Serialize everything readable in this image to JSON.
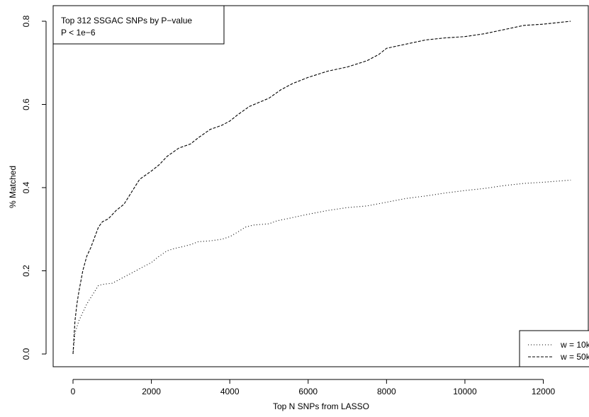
{
  "chart_data": {
    "type": "line",
    "title": "",
    "xlabel": "Top N SNPs from LASSO",
    "ylabel": "% Matched",
    "xlim": [
      0,
      12750
    ],
    "ylim": [
      0,
      0.8
    ],
    "x_ticks": [
      0,
      2000,
      4000,
      6000,
      8000,
      10000,
      12000
    ],
    "x_tick_labels": [
      "0",
      "2000",
      "4000",
      "6000",
      "8000",
      "10000",
      "12000"
    ],
    "y_ticks": [
      0.0,
      0.2,
      0.4,
      0.6,
      0.8
    ],
    "y_tick_labels": [
      "0.0",
      "0.2",
      "0.4",
      "0.6",
      "0.8"
    ],
    "grid": false,
    "legend_position": "bottom-right",
    "annotation": {
      "lines": [
        "Top 312 SSGAC SNPs by P−value",
        "P < 1e−6"
      ],
      "position": "top-left"
    },
    "series": [
      {
        "name": "w = 10k",
        "line_style": "dotted",
        "color": "#000000",
        "points": [
          [
            0,
            0.0
          ],
          [
            50,
            0.05
          ],
          [
            100,
            0.065
          ],
          [
            150,
            0.08
          ],
          [
            250,
            0.1
          ],
          [
            350,
            0.12
          ],
          [
            450,
            0.135
          ],
          [
            550,
            0.15
          ],
          [
            650,
            0.165
          ],
          [
            800,
            0.168
          ],
          [
            1000,
            0.17
          ],
          [
            1200,
            0.18
          ],
          [
            1400,
            0.19
          ],
          [
            1600,
            0.2
          ],
          [
            1800,
            0.21
          ],
          [
            2000,
            0.22
          ],
          [
            2200,
            0.235
          ],
          [
            2400,
            0.248
          ],
          [
            2600,
            0.254
          ],
          [
            2800,
            0.258
          ],
          [
            3000,
            0.263
          ],
          [
            3200,
            0.27
          ],
          [
            3500,
            0.272
          ],
          [
            3800,
            0.276
          ],
          [
            4000,
            0.282
          ],
          [
            4200,
            0.293
          ],
          [
            4400,
            0.305
          ],
          [
            4600,
            0.31
          ],
          [
            5000,
            0.313
          ],
          [
            5200,
            0.32
          ],
          [
            5500,
            0.326
          ],
          [
            6000,
            0.336
          ],
          [
            6500,
            0.345
          ],
          [
            7000,
            0.352
          ],
          [
            7500,
            0.356
          ],
          [
            8000,
            0.365
          ],
          [
            8500,
            0.374
          ],
          [
            9000,
            0.38
          ],
          [
            9500,
            0.387
          ],
          [
            10000,
            0.393
          ],
          [
            10500,
            0.398
          ],
          [
            11000,
            0.405
          ],
          [
            11500,
            0.41
          ],
          [
            12000,
            0.413
          ],
          [
            12700,
            0.418
          ]
        ]
      },
      {
        "name": "w = 50k",
        "line_style": "dashed",
        "color": "#000000",
        "points": [
          [
            0,
            0.0
          ],
          [
            50,
            0.08
          ],
          [
            100,
            0.12
          ],
          [
            150,
            0.15
          ],
          [
            250,
            0.2
          ],
          [
            350,
            0.235
          ],
          [
            450,
            0.255
          ],
          [
            550,
            0.28
          ],
          [
            650,
            0.305
          ],
          [
            750,
            0.318
          ],
          [
            900,
            0.325
          ],
          [
            1000,
            0.335
          ],
          [
            1100,
            0.345
          ],
          [
            1300,
            0.36
          ],
          [
            1500,
            0.39
          ],
          [
            1700,
            0.42
          ],
          [
            2000,
            0.44
          ],
          [
            2200,
            0.455
          ],
          [
            2400,
            0.475
          ],
          [
            2700,
            0.495
          ],
          [
            3000,
            0.505
          ],
          [
            3200,
            0.52
          ],
          [
            3500,
            0.54
          ],
          [
            3800,
            0.55
          ],
          [
            4000,
            0.56
          ],
          [
            4200,
            0.575
          ],
          [
            4500,
            0.595
          ],
          [
            5000,
            0.615
          ],
          [
            5300,
            0.635
          ],
          [
            5600,
            0.65
          ],
          [
            6000,
            0.665
          ],
          [
            6500,
            0.68
          ],
          [
            7000,
            0.69
          ],
          [
            7500,
            0.705
          ],
          [
            7800,
            0.72
          ],
          [
            8000,
            0.735
          ],
          [
            8500,
            0.745
          ],
          [
            9000,
            0.755
          ],
          [
            9500,
            0.76
          ],
          [
            10000,
            0.763
          ],
          [
            10500,
            0.77
          ],
          [
            11000,
            0.78
          ],
          [
            11500,
            0.79
          ],
          [
            12000,
            0.793
          ],
          [
            12700,
            0.8
          ]
        ]
      }
    ]
  }
}
